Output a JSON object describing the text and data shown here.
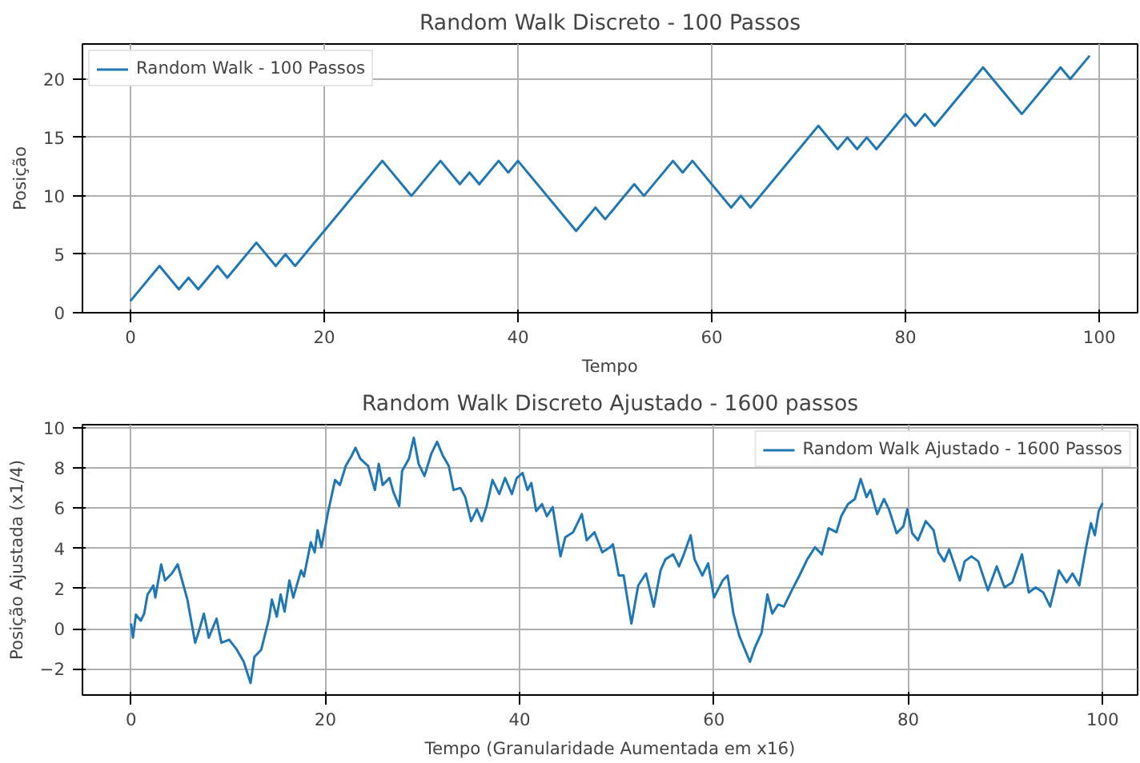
{
  "chart_data": [
    {
      "type": "line",
      "title": "Random Walk Discreto - 100 Passos",
      "xlabel": "Tempo",
      "ylabel": "Posição",
      "series": [
        {
          "name": "Random Walk - 100 Passos",
          "color": "#1f77b4",
          "x": [
            0,
            3,
            5,
            6,
            7,
            9,
            10,
            13,
            15,
            16,
            17,
            26,
            29,
            32,
            34,
            35,
            36,
            38,
            39,
            40,
            46,
            48,
            49,
            52,
            53,
            56,
            57,
            58,
            62,
            63,
            64,
            71,
            73,
            74,
            75,
            76,
            77,
            80,
            81,
            82,
            83,
            88,
            92,
            96,
            97,
            99
          ],
          "values": [
            1,
            4,
            2,
            3,
            2,
            4,
            3,
            6,
            4,
            5,
            4,
            13,
            10,
            13,
            11,
            12,
            11,
            13,
            12,
            13,
            7,
            9,
            8,
            11,
            10,
            13,
            12,
            13,
            9,
            10,
            9,
            16,
            14,
            15,
            14,
            15,
            14,
            17,
            16,
            17,
            16,
            21,
            17,
            21,
            20,
            22
          ]
        }
      ],
      "xlim": [
        -4.95,
        103.95
      ],
      "xticks": [
        0,
        20,
        40,
        60,
        80,
        100
      ],
      "ylim": [
        0,
        23
      ],
      "yticks": [
        0,
        5,
        10,
        15,
        20
      ],
      "grid": true,
      "legend": "top left",
      "line_style": "solid"
    },
    {
      "type": "line",
      "title": "Random Walk Discreto Ajustado - 1600 passos",
      "xlabel": "Tempo (Granularidade Aumentada em x16)",
      "ylabel": "Posição Ajustada (x1/4)",
      "series": [
        {
          "name": "Random Walk Ajustado - 1600 Passos",
          "color": "#1f77b4",
          "x": [
            0,
            0.2,
            0.5,
            1.0,
            1.35,
            1.7,
            2.3,
            2.5,
            3.1,
            3.5,
            4.2,
            4.8,
            5.2,
            5.8,
            6.6,
            7.0,
            7.5,
            8.0,
            8.8,
            9.3,
            10.1,
            10.9,
            11.6,
            12.3,
            12.7,
            13.4,
            14.2,
            14.5,
            15.0,
            15.4,
            15.8,
            16.3,
            16.7,
            17.5,
            17.8,
            18.5,
            18.9,
            19.2,
            19.6,
            20.3,
            21.0,
            21.5,
            22.1,
            22.7,
            23.1,
            23.6,
            24.4,
            25.1,
            25.5,
            25.9,
            26.6,
            27.0,
            27.6,
            27.9,
            28.6,
            29.1,
            29.6,
            30.2,
            30.9,
            31.5,
            32.1,
            32.7,
            33.2,
            33.9,
            34.4,
            35.0,
            35.6,
            36.1,
            36.6,
            37.2,
            37.9,
            38.5,
            39.2,
            39.7,
            40.3,
            40.8,
            41.2,
            41.7,
            42.3,
            42.8,
            43.4,
            44.2,
            44.7,
            45.5,
            46.4,
            46.9,
            47.7,
            48.5,
            49.3,
            49.6,
            50.2,
            50.7,
            51.5,
            52.2,
            53.0,
            53.8,
            54.5,
            55.0,
            55.8,
            56.4,
            56.9,
            57.6,
            58.0,
            58.8,
            59.4,
            60.0,
            60.9,
            61.4,
            62.0,
            62.6,
            63.7,
            64.2,
            64.9,
            65.5,
            66.0,
            66.6,
            67.2,
            68.0,
            68.8,
            69.6,
            70.4,
            71.1,
            71.8,
            72.6,
            73.1,
            73.8,
            74.5,
            75.1,
            75.7,
            76.1,
            76.8,
            77.5,
            78.0,
            78.8,
            79.5,
            79.9,
            80.4,
            81.0,
            81.8,
            82.6,
            83.1,
            83.7,
            84.2,
            85.3,
            85.8,
            86.5,
            87.2,
            88.2,
            89.1,
            89.9,
            90.7,
            91.7,
            92.4,
            93.1,
            93.9,
            94.6,
            95.5,
            96.3,
            96.9,
            97.6,
            98.3,
            98.8,
            99.2,
            99.6,
            100
          ],
          "values": [
            0.26,
            -0.45,
            0.7,
            0.4,
            0.75,
            1.7,
            2.15,
            1.55,
            3.2,
            2.4,
            2.75,
            3.2,
            2.5,
            1.45,
            -0.7,
            -0.1,
            0.75,
            -0.45,
            0.5,
            -0.7,
            -0.55,
            -1.05,
            -1.65,
            -2.7,
            -1.4,
            -1.05,
            0.5,
            1.45,
            0.6,
            1.7,
            0.85,
            2.4,
            1.55,
            2.9,
            2.6,
            4.3,
            3.8,
            4.9,
            4.05,
            5.85,
            7.4,
            7.15,
            8.1,
            8.6,
            9.0,
            8.45,
            8.1,
            6.9,
            8.2,
            7.15,
            7.5,
            6.8,
            6.1,
            7.85,
            8.45,
            9.5,
            8.2,
            7.6,
            8.7,
            9.3,
            8.6,
            8.1,
            6.9,
            7.0,
            6.55,
            5.35,
            5.95,
            5.35,
            6.1,
            7.4,
            6.7,
            7.5,
            6.7,
            7.5,
            7.75,
            6.9,
            7.25,
            5.85,
            6.2,
            5.6,
            6.05,
            3.6,
            4.55,
            4.8,
            5.7,
            4.4,
            4.8,
            3.8,
            4.05,
            4.2,
            2.65,
            2.65,
            0.25,
            2.15,
            2.75,
            1.1,
            2.9,
            3.45,
            3.7,
            3.1,
            3.7,
            4.65,
            3.45,
            2.65,
            3.25,
            1.55,
            2.4,
            2.65,
            0.75,
            -0.35,
            -1.65,
            -0.95,
            -0.2,
            1.7,
            0.75,
            1.2,
            1.1,
            1.9,
            2.65,
            3.45,
            4.05,
            3.7,
            5.0,
            4.8,
            5.6,
            6.2,
            6.45,
            7.45,
            6.55,
            6.9,
            5.7,
            6.45,
            5.95,
            4.75,
            5.1,
            5.95,
            4.75,
            4.4,
            5.35,
            4.9,
            3.8,
            3.35,
            3.95,
            2.4,
            3.35,
            3.6,
            3.35,
            1.9,
            3.1,
            2.05,
            2.3,
            3.7,
            1.8,
            2.05,
            1.8,
            1.1,
            2.9,
            2.3,
            2.75,
            2.15,
            4.05,
            5.25,
            4.65,
            5.85,
            6.25
          ]
        }
      ],
      "xlim": [
        -5,
        103.6
      ],
      "xticks": [
        0,
        20,
        40,
        60,
        80,
        100
      ],
      "ylim": [
        -3.3,
        10.15
      ],
      "yticks": [
        -2,
        0,
        2,
        4,
        6,
        8,
        10
      ],
      "grid": true,
      "legend": "top right",
      "line_style": "solid"
    }
  ]
}
